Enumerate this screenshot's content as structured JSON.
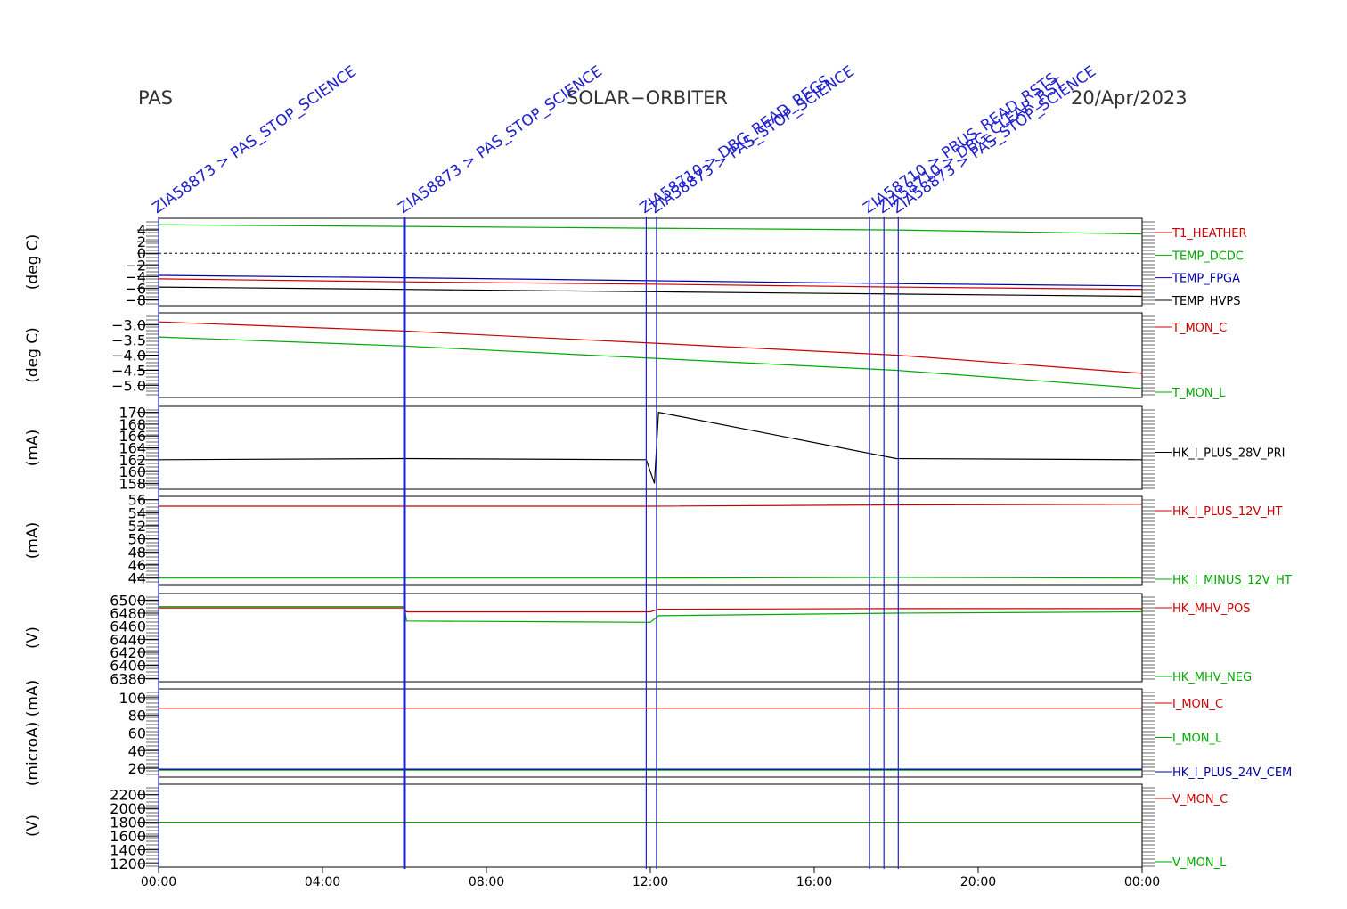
{
  "header": {
    "left": "PAS",
    "center": "SOLAR−ORBITER",
    "right": "20/Apr/2023"
  },
  "colors": {
    "red": "#cc0000",
    "green": "#00aa00",
    "blue": "#0000aa",
    "black": "#000000",
    "event": "#2222cc"
  },
  "x_ticks": [
    "00:00",
    "04:00",
    "08:00",
    "12:00",
    "16:00",
    "20:00",
    "00:00"
  ],
  "events": [
    {
      "hour": 0.0,
      "label": "ZIA58873 > PAS_STOP_SCIENCE"
    },
    {
      "hour": 6.0,
      "label": "ZIA58873 > PAS_STOP_SCIENCE"
    },
    {
      "hour": 11.9,
      "label": "ZIA58710 > DBG_READ_REGS"
    },
    {
      "hour": 12.15,
      "label": "ZIA58873 > PAS_STOP_SCIENCE"
    },
    {
      "hour": 17.35,
      "label": "ZIA58710 > PBUS_READ_RSTS"
    },
    {
      "hour": 17.7,
      "label": "ZIA58710 > DBG_CLEAR_RST"
    },
    {
      "hour": 18.05,
      "label": "ZIA58873 > PAS_STOP_SCIENCE"
    }
  ],
  "chart_data": [
    {
      "type": "line",
      "ylabel": "(deg C)",
      "ylim": [
        -9,
        6
      ],
      "yticks": [
        "4",
        "2",
        "0",
        "−2",
        "−4",
        "−6",
        "−8"
      ],
      "series": [
        {
          "name": "T1_HEATHER",
          "color": "#cc0000",
          "x": [
            0,
            6,
            12,
            18,
            24
          ],
          "y": [
            -4.4,
            -4.9,
            -5.3,
            -5.8,
            -6.2
          ]
        },
        {
          "name": "TEMP_DCDC",
          "color": "#00aa00",
          "x": [
            0,
            6,
            12,
            18,
            24
          ],
          "y": [
            4.9,
            4.6,
            4.3,
            4.0,
            3.3
          ]
        },
        {
          "name": "TEMP_FPGA",
          "color": "#0000aa",
          "x": [
            0,
            6,
            12,
            18,
            24
          ],
          "y": [
            -3.8,
            -4.2,
            -4.7,
            -5.2,
            -5.6
          ]
        },
        {
          "name": "TEMP_HVPS",
          "color": "#000000",
          "x": [
            0,
            6,
            12,
            18,
            24
          ],
          "y": [
            -5.8,
            -6.2,
            -6.6,
            -7.0,
            -7.4
          ]
        }
      ]
    },
    {
      "type": "line",
      "ylabel": "(deg C)",
      "ylim": [
        -5.4,
        -2.6
      ],
      "yticks": [
        "−3.0",
        "−3.5",
        "−4.0",
        "−4.5",
        "−5.0"
      ],
      "series": [
        {
          "name": "T_MON_C",
          "color": "#cc0000",
          "x": [
            0,
            6,
            12,
            18,
            24
          ],
          "y": [
            -2.9,
            -3.2,
            -3.6,
            -4.0,
            -4.6
          ]
        },
        {
          "name": "T_MON_L",
          "color": "#00aa00",
          "x": [
            0,
            6,
            12,
            18,
            24
          ],
          "y": [
            -3.4,
            -3.7,
            -4.1,
            -4.5,
            -5.1
          ]
        }
      ]
    },
    {
      "type": "line",
      "ylabel": "(mA)",
      "ylim": [
        157,
        171
      ],
      "yticks": [
        "170",
        "168",
        "166",
        "164",
        "162",
        "160",
        "158"
      ],
      "series": [
        {
          "name": "HK_I_PLUS_28V_PRI",
          "color": "#000000",
          "x": [
            0,
            6,
            11.9,
            12.1,
            12.2,
            18,
            24
          ],
          "y": [
            162.0,
            162.2,
            162.0,
            158.0,
            170.0,
            162.2,
            162.0
          ]
        }
      ]
    },
    {
      "type": "line",
      "ylabel": "(mA)",
      "ylim": [
        43,
        56.5
      ],
      "yticks": [
        "56",
        "54",
        "52",
        "50",
        "48",
        "46",
        "44"
      ],
      "series": [
        {
          "name": "HK_I_PLUS_12V_HT",
          "color": "#cc0000",
          "x": [
            0,
            12,
            18,
            24
          ],
          "y": [
            55.0,
            55.0,
            55.2,
            55.3
          ]
        },
        {
          "name": "HK_I_MINUS_12V_HT",
          "color": "#00aa00",
          "x": [
            0,
            12,
            18,
            24
          ],
          "y": [
            44.0,
            44.0,
            44.1,
            44.0
          ]
        }
      ]
    },
    {
      "type": "line",
      "ylabel": "(V)",
      "ylim": [
        6375,
        6510
      ],
      "yticks": [
        "6500",
        "6480",
        "6460",
        "6440",
        "6420",
        "6400",
        "6380"
      ],
      "series": [
        {
          "name": "HK_MHV_POS",
          "color": "#cc0000",
          "x": [
            0,
            6,
            6.05,
            12,
            12.2,
            18,
            24
          ],
          "y": [
            6488,
            6488,
            6482,
            6482,
            6486,
            6487,
            6487
          ]
        },
        {
          "name": "HK_MHV_NEG",
          "color": "#00aa00",
          "x": [
            0,
            6,
            6.05,
            12,
            12.2,
            18,
            24
          ],
          "y": [
            6490,
            6490,
            6468,
            6466,
            6476,
            6480,
            6482
          ]
        }
      ]
    },
    {
      "type": "line",
      "ylabel": "(microA) (mA)",
      "ylim": [
        10,
        110
      ],
      "yticks": [
        "100",
        "80",
        "60",
        "40",
        "20"
      ],
      "series": [
        {
          "name": "I_MON_C",
          "color": "#cc0000",
          "x": [
            0,
            12,
            16,
            24
          ],
          "y": [
            88,
            88,
            88,
            88
          ]
        },
        {
          "name": "I_MON_L",
          "color": "#00aa00",
          "x": [
            0,
            24
          ],
          "y": [
            18,
            18
          ]
        },
        {
          "name": "HK_I_PLUS_24V_CEM",
          "color": "#0000aa",
          "x": [
            0,
            24
          ],
          "y": [
            19,
            19
          ]
        }
      ]
    },
    {
      "type": "line",
      "ylabel": "(V)",
      "ylim": [
        1150,
        2350
      ],
      "yticks": [
        "2200",
        "2000",
        "1800",
        "1600",
        "1400",
        "1200"
      ],
      "series": [
        {
          "name": "V_MON_C",
          "color": "#cc0000",
          "x": [
            0,
            24
          ],
          "y": [
            1800,
            1800
          ]
        },
        {
          "name": "V_MON_L",
          "color": "#00aa00",
          "x": [
            0,
            24
          ],
          "y": [
            1800,
            1800
          ]
        }
      ]
    }
  ]
}
